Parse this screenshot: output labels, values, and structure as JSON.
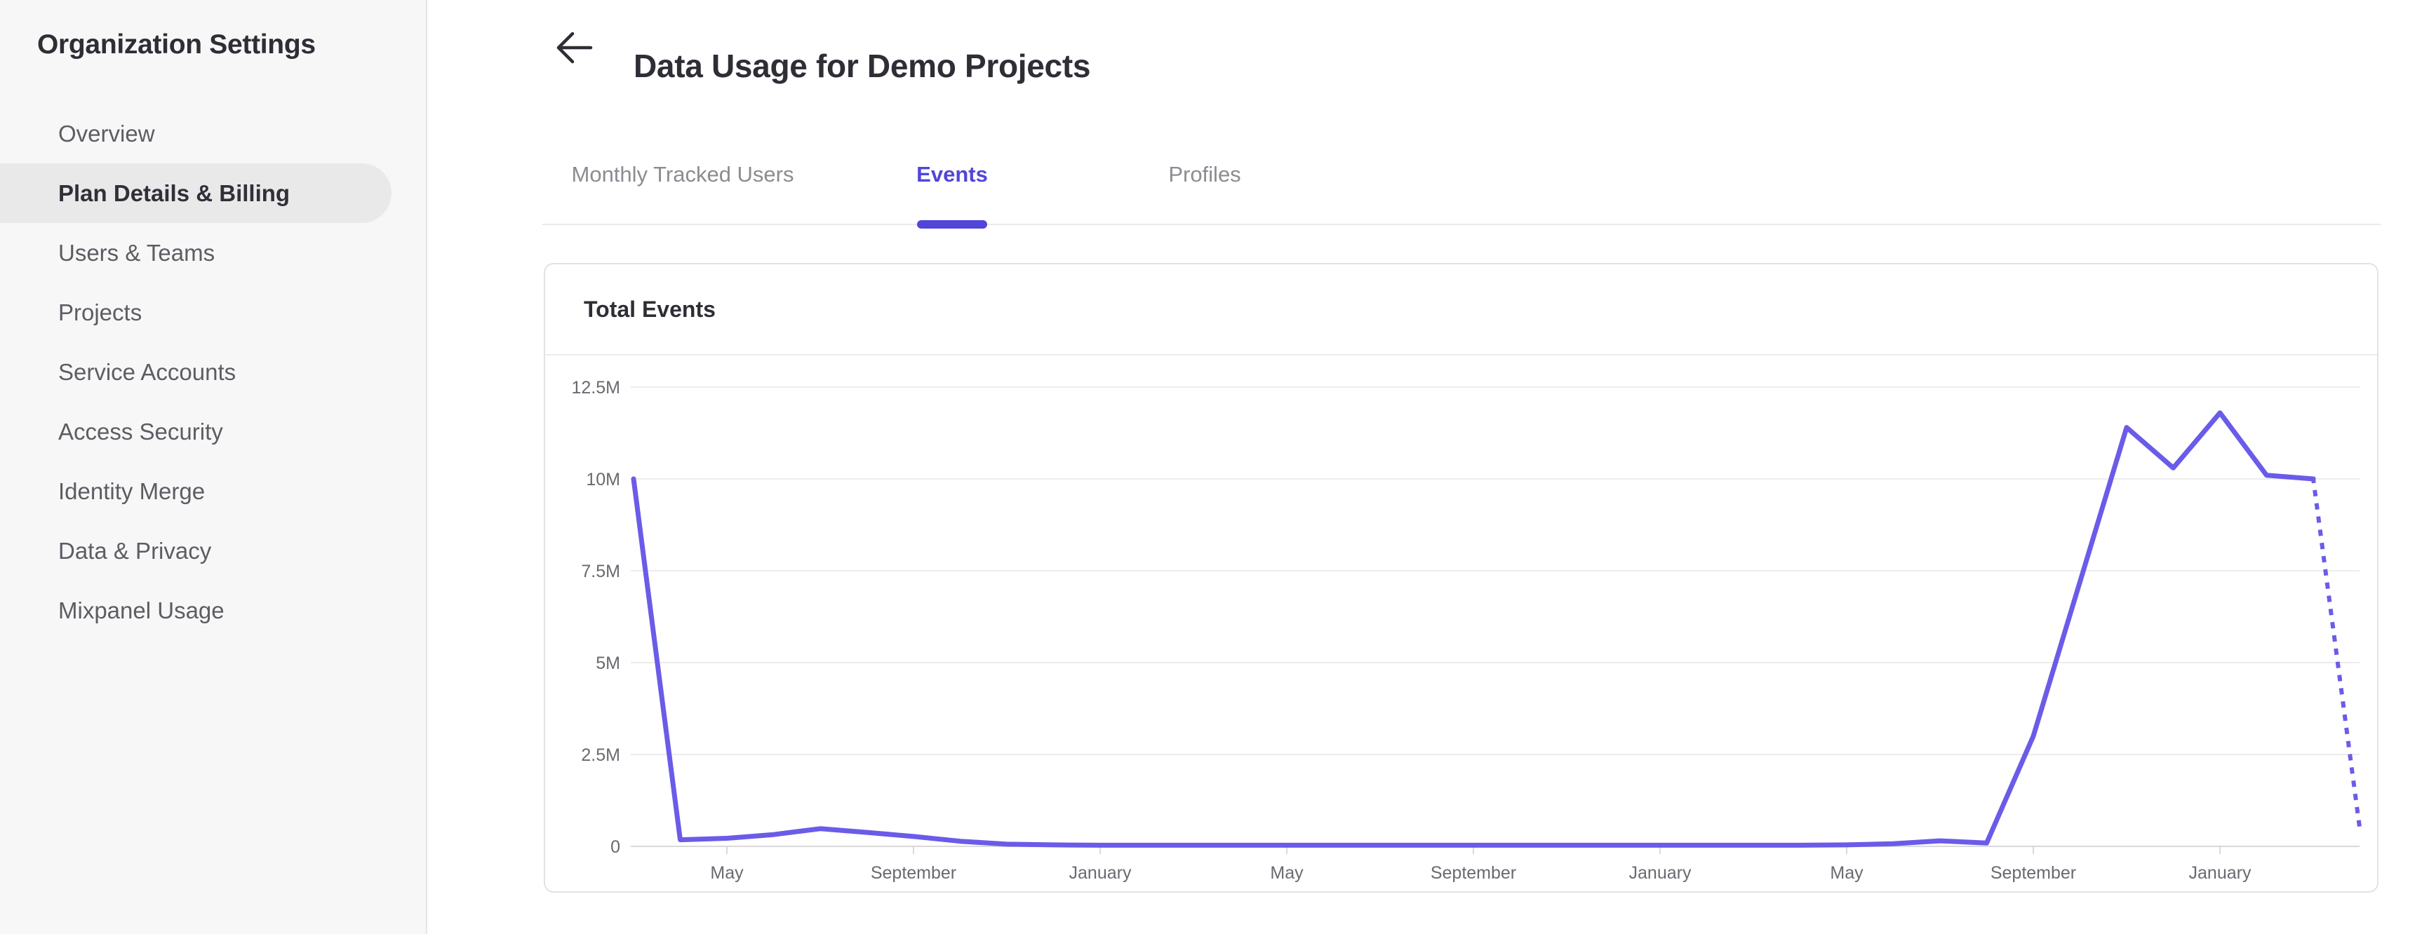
{
  "sidebar": {
    "title": "Organization Settings",
    "items": [
      {
        "label": "Overview",
        "selected": false
      },
      {
        "label": "Plan Details & Billing",
        "selected": true
      },
      {
        "label": "Users & Teams",
        "selected": false
      },
      {
        "label": "Projects",
        "selected": false
      },
      {
        "label": "Service Accounts",
        "selected": false
      },
      {
        "label": "Access Security",
        "selected": false
      },
      {
        "label": "Identity Merge",
        "selected": false
      },
      {
        "label": "Data & Privacy",
        "selected": false
      },
      {
        "label": "Mixpanel Usage",
        "selected": false
      }
    ]
  },
  "header": {
    "title": "Data Usage for Demo Projects",
    "back_icon": "back-arrow"
  },
  "tabs": [
    {
      "label": "Monthly Tracked Users",
      "active": false
    },
    {
      "label": "Events",
      "active": true
    },
    {
      "label": "Profiles",
      "active": false
    }
  ],
  "card": {
    "title": "Total Events"
  },
  "colors": {
    "accent_purple": "#5146d9",
    "line_purple": "#6a5ce8",
    "sidebar_bg": "#f7f7f7",
    "selected_pill": "#e9e9e9",
    "grid_line": "#ececec",
    "axis_line": "#d9d9d9",
    "axis_label_gray": "#6b6970",
    "tab_gray": "#8d8b92",
    "text_dark": "#2f2d35"
  },
  "chart_data": {
    "type": "line",
    "title": "Total Events",
    "xlabel": "",
    "ylabel": "",
    "ylim": [
      0,
      12.5
    ],
    "grid": "horizontal",
    "legend": "none",
    "y_tick_labels": [
      "0",
      "2.5M",
      "5M",
      "7.5M",
      "10M",
      "12.5M"
    ],
    "y_tick_values_m": [
      0,
      2.5,
      5,
      7.5,
      10,
      12.5
    ],
    "x_tick_labels": [
      {
        "label": "May",
        "index": 2
      },
      {
        "label": "September",
        "index": 6
      },
      {
        "label": "January",
        "index": 10
      },
      {
        "label": "May",
        "index": 14
      },
      {
        "label": "September",
        "index": 18
      },
      {
        "label": "January",
        "index": 22
      },
      {
        "label": "May",
        "index": 26
      },
      {
        "label": "September",
        "index": 30
      },
      {
        "label": "January",
        "index": 34
      }
    ],
    "last_segment_style": "dotted",
    "series": [
      {
        "name": "Total Events",
        "unit": "million events",
        "points": [
          {
            "month": "Mar",
            "value_m": 10.0
          },
          {
            "month": "Apr",
            "value_m": 0.18
          },
          {
            "month": "May",
            "value_m": 0.22
          },
          {
            "month": "Jun",
            "value_m": 0.32
          },
          {
            "month": "Jul",
            "value_m": 0.48
          },
          {
            "month": "Aug",
            "value_m": 0.38
          },
          {
            "month": "Sep",
            "value_m": 0.27
          },
          {
            "month": "Oct",
            "value_m": 0.14
          },
          {
            "month": "Nov",
            "value_m": 0.06
          },
          {
            "month": "Dec",
            "value_m": 0.04
          },
          {
            "month": "Jan",
            "value_m": 0.03
          },
          {
            "month": "Feb",
            "value_m": 0.03
          },
          {
            "month": "Mar",
            "value_m": 0.03
          },
          {
            "month": "Apr",
            "value_m": 0.03
          },
          {
            "month": "May",
            "value_m": 0.03
          },
          {
            "month": "Jun",
            "value_m": 0.03
          },
          {
            "month": "Jul",
            "value_m": 0.03
          },
          {
            "month": "Aug",
            "value_m": 0.03
          },
          {
            "month": "Sep",
            "value_m": 0.03
          },
          {
            "month": "Oct",
            "value_m": 0.03
          },
          {
            "month": "Nov",
            "value_m": 0.03
          },
          {
            "month": "Dec",
            "value_m": 0.03
          },
          {
            "month": "Jan",
            "value_m": 0.03
          },
          {
            "month": "Feb",
            "value_m": 0.03
          },
          {
            "month": "Mar",
            "value_m": 0.03
          },
          {
            "month": "Apr",
            "value_m": 0.03
          },
          {
            "month": "May",
            "value_m": 0.04
          },
          {
            "month": "Jun",
            "value_m": 0.07
          },
          {
            "month": "Jul",
            "value_m": 0.15
          },
          {
            "month": "Aug",
            "value_m": 0.09
          },
          {
            "month": "Sep",
            "value_m": 3.0
          },
          {
            "month": "Oct",
            "value_m": 7.2
          },
          {
            "month": "Nov",
            "value_m": 11.4
          },
          {
            "month": "Dec",
            "value_m": 10.3
          },
          {
            "month": "Jan",
            "value_m": 11.8
          },
          {
            "month": "Feb",
            "value_m": 10.1
          },
          {
            "month": "Mar",
            "value_m": 10.0
          },
          {
            "month": "Apr",
            "value_m": 0.45
          }
        ]
      }
    ]
  }
}
